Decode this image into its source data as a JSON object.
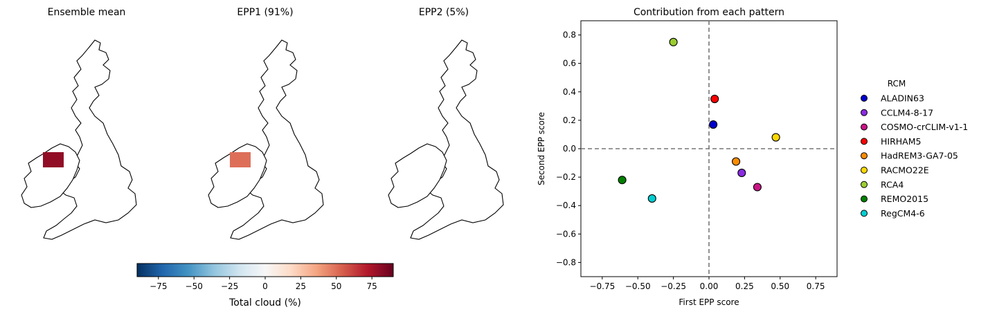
{
  "maps": [
    {
      "title": "Ensemble mean",
      "pattern": "mean"
    },
    {
      "title": "EPP1 (91%)",
      "pattern": "epp1"
    },
    {
      "title": "EPP2 (5%)",
      "pattern": "epp2"
    }
  ],
  "colorbar": {
    "label": "Total cloud (%)",
    "ticks": [
      -75,
      -50,
      -25,
      0,
      25,
      50,
      75
    ],
    "tick_labels": [
      "−75",
      "−50",
      "−25",
      "0",
      "25",
      "50",
      "75"
    ],
    "range": [
      -90,
      90
    ],
    "colormap": [
      "#053061",
      "#2166ac",
      "#4393c3",
      "#92c5de",
      "#d1e5f0",
      "#f7f7f7",
      "#fddbc7",
      "#f4a582",
      "#d6604d",
      "#b2182b",
      "#67001f"
    ]
  },
  "chart_data": {
    "type": "scatter",
    "title": "Contribution from each pattern",
    "xlabel": "First EPP score",
    "ylabel": "Second EPP score",
    "xlim": [
      -0.9,
      0.9
    ],
    "ylim": [
      -0.9,
      0.9
    ],
    "xticks": [
      -0.75,
      -0.5,
      -0.25,
      0,
      0.25,
      0.5,
      0.75
    ],
    "xtick_labels": [
      "−0.75",
      "−0.50",
      "−0.25",
      "0.00",
      "0.25",
      "0.50",
      "0.75"
    ],
    "yticks": [
      -0.8,
      -0.6,
      -0.4,
      -0.2,
      0,
      0.2,
      0.4,
      0.6,
      0.8
    ],
    "ytick_labels": [
      "−0.8",
      "−0.6",
      "−0.4",
      "−0.2",
      "0.0",
      "0.2",
      "0.4",
      "0.6",
      "0.8"
    ],
    "reference_lines": {
      "x": 0,
      "y": 0,
      "style": "dashed"
    },
    "legend_title": "RCM",
    "legend_position": "right, outside",
    "series": [
      {
        "name": "ALADIN63",
        "x": 0.03,
        "y": 0.17,
        "color": "#0000cd"
      },
      {
        "name": "CCLM4-8-17",
        "x": 0.23,
        "y": -0.17,
        "color": "#8a2be2"
      },
      {
        "name": "COSMO-crCLIM-v1-1",
        "x": 0.34,
        "y": -0.27,
        "color": "#c71585"
      },
      {
        "name": "HIRHAM5",
        "x": 0.04,
        "y": 0.35,
        "color": "#ff0000"
      },
      {
        "name": "HadREM3-GA7-05",
        "x": 0.19,
        "y": -0.09,
        "color": "#ff8c00"
      },
      {
        "name": "RACMO22E",
        "x": 0.47,
        "y": 0.08,
        "color": "#ffd700"
      },
      {
        "name": "RCA4",
        "x": -0.25,
        "y": 0.75,
        "color": "#9acd32"
      },
      {
        "name": "REMO2015",
        "x": -0.61,
        "y": -0.22,
        "color": "#008000"
      },
      {
        "name": "RegCM4-6",
        "x": -0.4,
        "y": -0.35,
        "color": "#00ced1"
      }
    ]
  }
}
